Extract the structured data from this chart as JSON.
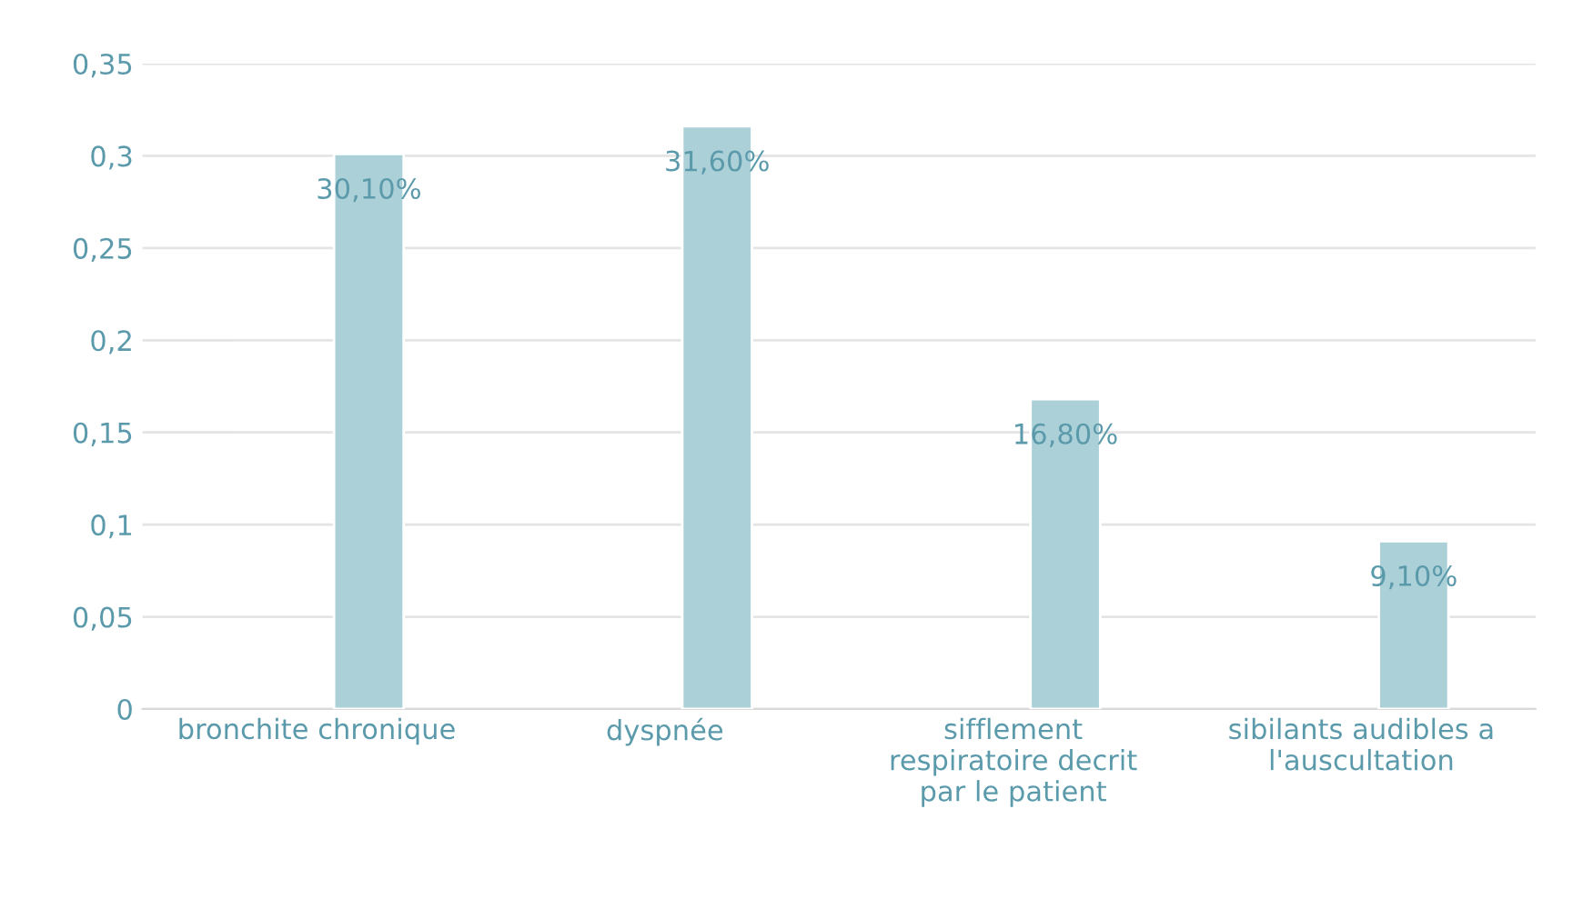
{
  "chart_data": {
    "type": "bar",
    "categories": [
      "bronchite chronique",
      "dyspnée",
      "sifflement\nrespiratoire decrit\npar le patient",
      "sibilants audibles a\nl'auscultation"
    ],
    "values": [
      0.301,
      0.316,
      0.168,
      0.091
    ],
    "value_labels": [
      "30,10%",
      "31,60%",
      "16,80%",
      "9,10%"
    ],
    "color": "#acd0d8",
    "ylim": [
      0,
      0.35
    ],
    "yticks": [
      0,
      {
        "value": 0.05,
        "label": "0,05"
      },
      {
        "value": 0.1,
        "label": "0,1"
      },
      {
        "value": 0.15,
        "label": "0,15"
      },
      {
        "value": 0.2,
        "label": "0,2"
      },
      {
        "value": 0.25,
        "label": "0,25"
      },
      {
        "value": 0.3,
        "label": "0,3"
      },
      {
        "value": 0.35,
        "label": "0,35"
      }
    ],
    "grid": "y"
  }
}
